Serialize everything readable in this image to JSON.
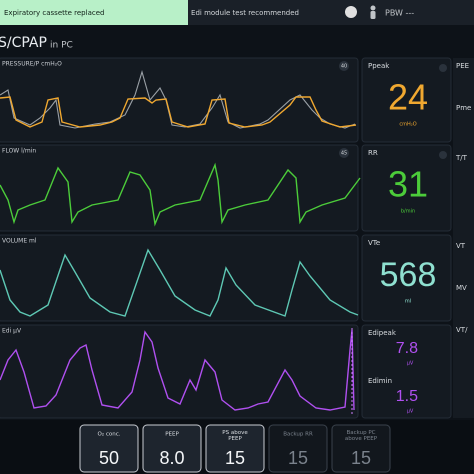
{
  "alerts": [
    "Expiratory cassette replaced",
    "Edi module test recommended"
  ],
  "patient": "PBW ---",
  "mode": {
    "name": "S/CPAP",
    "sub": "in PC"
  },
  "waveforms": [
    {
      "label": "PRESSURE/P cmH₂O",
      "scale": "40"
    },
    {
      "label": "FLOW l/min",
      "scale": "45"
    },
    {
      "label": "VOLUME ml",
      "scale": ""
    },
    {
      "label": "Edi µV",
      "scale": ""
    }
  ],
  "measurements": [
    {
      "label": "Ppeak",
      "value": "24",
      "unit": "cmH₂O"
    },
    {
      "label": "RR",
      "value": "31",
      "unit": "b/min"
    },
    {
      "label": "VTe",
      "value": "568",
      "unit": "ml"
    },
    {
      "label": "Edipeak",
      "value": "7.8",
      "unit": "µV"
    },
    {
      "label": "Edimin",
      "value": "1.5",
      "unit": "µV"
    }
  ],
  "side_labels": [
    "PEE",
    "Pme",
    "T/T",
    "VT",
    "MV",
    "VT/"
  ],
  "settings": [
    {
      "label": "O₂ conc.",
      "value": "50"
    },
    {
      "label": "PEEP",
      "value": "8.0"
    },
    {
      "label": "PS above PEEP",
      "value": "15"
    },
    {
      "label": "Backup RR",
      "value": "15"
    },
    {
      "label": "Backup PC above PEEP",
      "value": "15"
    }
  ]
}
